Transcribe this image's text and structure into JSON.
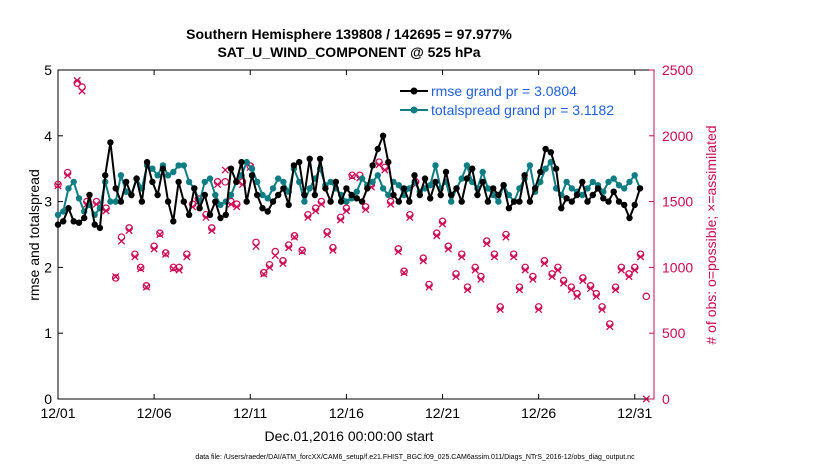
{
  "chart_data": {
    "type": "line",
    "title_line1": "Southern Hemisphere 139808 / 142695 = 97.977%",
    "title_line2": "SAT_U_WIND_COMPONENT @ 525 hPa",
    "xlabel": "Dec.01,2016 00:00:00 start",
    "ylabel_left": "rmse and totalspread",
    "ylabel_right": "# of obs: o=possible; ×=assimilated",
    "footnote": "data file: /Users/raeder/DAI/ATM_forcXX/CAM6_setup/f.e21.FHIST_BGC.f09_025.CAM6assim.011/Diags_NTrS_2016-12/obs_diag_output.nc",
    "xlim": [
      1,
      32
    ],
    "ylim_left": [
      0,
      5
    ],
    "ylim_right": [
      0,
      2500
    ],
    "x_ticks": [
      1,
      6,
      11,
      16,
      21,
      26,
      31
    ],
    "x_tick_labels": [
      "12/01",
      "12/06",
      "12/11",
      "12/16",
      "12/21",
      "12/26",
      "12/31"
    ],
    "y_left_ticks": [
      "0",
      "1",
      "2",
      "3",
      "4",
      "5"
    ],
    "y_right_ticks": [
      "0",
      "500",
      "1000",
      "1500",
      "2000",
      "2500"
    ],
    "colors": {
      "rmse": "#000000",
      "spread": "#0e7e84",
      "obs": "#cc0a55",
      "legend_text": "#1f5fe0"
    },
    "series": [
      {
        "name": "rmse grand pr = 3.0804",
        "axis": "left",
        "values": [
          2.65,
          2.7,
          2.9,
          2.7,
          2.68,
          2.75,
          3.1,
          2.65,
          2.6,
          3.4,
          3.9,
          3.2,
          3.0,
          3.3,
          3.1,
          3.35,
          3.0,
          3.6,
          3.3,
          3.1,
          3.5,
          3.0,
          2.7,
          3.3,
          3.0,
          2.8,
          3.2,
          2.9,
          3.1,
          2.8,
          3.0,
          2.75,
          2.8,
          3.5,
          3.3,
          3.6,
          3.0,
          3.4,
          3.1,
          2.9,
          2.85,
          3.0,
          3.1,
          3.2,
          2.95,
          3.55,
          3.6,
          3.1,
          3.65,
          3.1,
          3.65,
          3.2,
          3.0,
          3.3,
          3.0,
          3.2,
          3.1,
          3.05,
          3.0,
          3.2,
          3.55,
          3.8,
          4.0,
          3.6,
          3.1,
          3.0,
          3.2,
          3.0,
          3.4,
          3.1,
          3.35,
          3.05,
          3.3,
          3.1,
          3.45,
          3.1,
          3.2,
          3.0,
          3.35,
          3.5,
          3.1,
          3.3,
          3.0,
          3.2,
          3.1,
          3.25,
          2.9,
          3.0,
          3.0,
          3.4,
          3.0,
          3.2,
          3.45,
          3.8,
          3.75,
          3.5,
          2.9,
          3.05,
          3.0,
          3.1,
          3.3,
          3.0,
          3.1,
          3.2,
          3.05,
          3.0,
          3.15,
          3.0,
          2.95,
          2.75,
          2.95,
          3.2
        ],
        "x_start": 1.0,
        "x_step": 0.2727
      },
      {
        "name": "totalspread grand pr = 3.1182",
        "axis": "left",
        "values": [
          2.8,
          2.85,
          3.2,
          3.3,
          3.05,
          2.85,
          2.95,
          2.8,
          2.9,
          3.3,
          3.0,
          3.0,
          3.4,
          3.15,
          3.1,
          3.35,
          3.2,
          3.55,
          3.5,
          3.4,
          3.55,
          3.4,
          3.45,
          3.55,
          3.55,
          3.3,
          3.2,
          3.0,
          3.3,
          3.35,
          3.1,
          2.95,
          3.0,
          3.1,
          3.3,
          3.4,
          3.6,
          3.5,
          3.3,
          3.1,
          3.05,
          3.2,
          3.35,
          3.3,
          3.15,
          3.5,
          3.3,
          3.0,
          3.2,
          3.35,
          3.5,
          3.25,
          3.3,
          3.2,
          3.1,
          3.0,
          3.05,
          3.15,
          3.35,
          3.25,
          3.3,
          3.4,
          3.2,
          3.1,
          3.3,
          3.25,
          3.1,
          3.2,
          3.3,
          3.15,
          3.2,
          3.25,
          3.55,
          3.2,
          3.3,
          3.0,
          3.2,
          3.35,
          3.55,
          3.3,
          3.2,
          3.45,
          3.2,
          3.1,
          3.0,
          3.25,
          3.1,
          3.0,
          3.2,
          3.35,
          3.55,
          3.15,
          3.3,
          3.5,
          3.6,
          3.2,
          3.1,
          3.3,
          3.2,
          3.15,
          3.1,
          3.2,
          3.3,
          3.25,
          3.15,
          3.3,
          3.35,
          3.25,
          3.2,
          3.3,
          3.4,
          3.2
        ],
        "x_start": 1.0,
        "x_step": 0.2727
      }
    ],
    "obs_possible": {
      "axis": "right",
      "x": [
        1.0,
        1.5,
        2.0,
        2.25,
        2.5,
        3.0,
        3.5,
        4.0,
        4.3,
        4.7,
        5.0,
        5.3,
        5.6,
        6.0,
        6.3,
        6.6,
        7.0,
        7.3,
        7.7,
        8.0,
        8.3,
        8.7,
        9.0,
        9.3,
        9.7,
        10.0,
        10.3,
        10.6,
        11.0,
        11.3,
        11.7,
        12.0,
        12.3,
        12.7,
        13.0,
        13.3,
        13.7,
        14.0,
        14.4,
        14.7,
        15.0,
        15.3,
        15.7,
        16.0,
        16.3,
        16.7,
        17.0,
        17.3,
        17.7,
        18.0,
        18.3,
        18.7,
        19.0,
        19.3,
        19.6,
        20.0,
        20.3,
        20.7,
        21.0,
        21.3,
        21.7,
        22.0,
        22.3,
        22.7,
        23.0,
        23.3,
        23.7,
        24.0,
        24.3,
        24.7,
        25.0,
        25.3,
        25.7,
        26.0,
        26.3,
        26.7,
        27.0,
        27.3,
        27.7,
        28.0,
        28.3,
        28.7,
        29.0,
        29.3,
        29.7,
        30.0,
        30.3,
        30.7,
        31.0,
        31.3,
        31.6
      ],
      "values": [
        1630,
        1720,
        2400,
        2370,
        1500,
        1500,
        1450,
        920,
        1230,
        1300,
        1100,
        1000,
        860,
        1160,
        1260,
        1110,
        1000,
        1000,
        1100,
        1480,
        1520,
        1400,
        1300,
        1650,
        1650,
        1500,
        1480,
        1650,
        1770,
        1190,
        960,
        1020,
        1120,
        1050,
        1170,
        1240,
        1130,
        1400,
        1450,
        1500,
        1270,
        1150,
        1380,
        1450,
        1700,
        1700,
        1460,
        1630,
        1800,
        1760,
        1500,
        1140,
        970,
        1400,
        1650,
        1070,
        870,
        1260,
        1350,
        1160,
        950,
        1100,
        850,
        1000,
        930,
        1200,
        1100,
        700,
        1250,
        1100,
        850,
        1000,
        930,
        700,
        1050,
        950,
        1000,
        900,
        850,
        800,
        920,
        860,
        800,
        700,
        570,
        850,
        1000,
        950,
        1000,
        1100,
        780
      ],
      "marker": "circle"
    },
    "obs_assimilated": {
      "axis": "right",
      "x": [
        1.0,
        1.5,
        2.0,
        2.25,
        2.5,
        3.0,
        3.5,
        4.0,
        4.3,
        4.7,
        5.0,
        5.3,
        5.6,
        6.0,
        6.3,
        6.6,
        7.0,
        7.3,
        7.7,
        8.0,
        8.3,
        8.7,
        9.0,
        9.3,
        9.7,
        10.0,
        10.3,
        10.6,
        11.0,
        11.3,
        11.7,
        12.0,
        12.3,
        12.7,
        13.0,
        13.3,
        13.7,
        14.0,
        14.4,
        14.7,
        15.0,
        15.3,
        15.7,
        16.0,
        16.3,
        16.7,
        17.0,
        17.3,
        17.7,
        18.0,
        18.3,
        18.7,
        19.0,
        19.3,
        19.6,
        20.0,
        20.3,
        20.7,
        21.0,
        21.3,
        21.7,
        22.0,
        22.3,
        22.7,
        23.0,
        23.3,
        23.7,
        24.0,
        24.3,
        24.7,
        25.0,
        25.3,
        25.7,
        26.0,
        26.3,
        26.7,
        27.0,
        27.3,
        27.7,
        28.0,
        28.3,
        28.7,
        29.0,
        29.3,
        29.7,
        30.0,
        30.3,
        30.7,
        31.0,
        31.3,
        31.6
      ],
      "values": [
        1620,
        1700,
        2420,
        2340,
        1480,
        1480,
        1430,
        930,
        1200,
        1280,
        1080,
        990,
        850,
        1140,
        1250,
        1100,
        990,
        980,
        1080,
        1460,
        1500,
        1380,
        1280,
        1630,
        1740,
        1480,
        1460,
        1630,
        1760,
        1160,
        950,
        1000,
        1090,
        1030,
        1150,
        1230,
        1120,
        1380,
        1430,
        1480,
        1250,
        1130,
        1360,
        1430,
        1690,
        1680,
        1440,
        1610,
        1780,
        1740,
        1480,
        1120,
        960,
        1380,
        1630,
        1050,
        850,
        1240,
        1330,
        1140,
        930,
        1080,
        830,
        980,
        910,
        1180,
        1080,
        680,
        1230,
        1080,
        830,
        980,
        910,
        680,
        1030,
        930,
        980,
        880,
        830,
        780,
        900,
        840,
        780,
        680,
        550,
        830,
        980,
        930,
        980,
        1080,
        0
      ],
      "marker": "x"
    }
  }
}
